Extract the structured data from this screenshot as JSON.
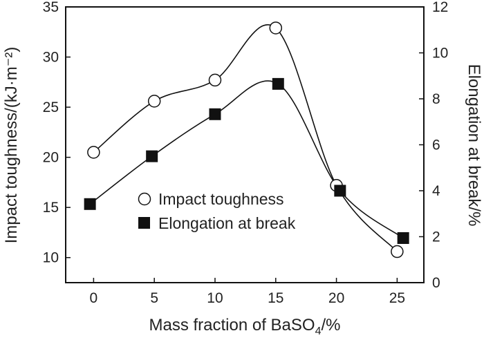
{
  "chart_data": {
    "type": "line",
    "x": [
      0,
      5,
      10,
      15,
      20,
      25
    ],
    "xlabel": {
      "prefix": "Mass fraction of BaSO",
      "sub": "4",
      "suffix": "/%"
    },
    "xlim": [
      -2.3,
      27.2
    ],
    "xticks": [
      0,
      5,
      10,
      15,
      20,
      25
    ],
    "ylabel_left": "Impact toughness/(kJ·m⁻²)",
    "ylim_left": [
      7.5,
      35
    ],
    "yticks_left": [
      10,
      15,
      20,
      25,
      30,
      35
    ],
    "ylabel_right": "Elongation at break/%",
    "ylim_right": [
      0,
      12
    ],
    "yticks_right": [
      0,
      2,
      4,
      6,
      8,
      10,
      12
    ],
    "series": [
      {
        "name": "Impact toughness",
        "axis": "left",
        "marker": "open-circle",
        "x": [
          0,
          5,
          10,
          15,
          20,
          25
        ],
        "values": [
          20.5,
          25.6,
          27.7,
          32.9,
          17.2,
          10.6
        ]
      },
      {
        "name": "Elongation at break",
        "axis": "right",
        "marker": "filled-square",
        "x": [
          -0.3,
          4.8,
          10.0,
          15.2,
          20.3,
          25.5
        ],
        "values": [
          3.42,
          5.5,
          7.33,
          8.65,
          4.0,
          1.94
        ]
      }
    ],
    "legend": {
      "position": "center-left",
      "entries": [
        "Impact toughness",
        "Elongation at break"
      ]
    },
    "grid": false
  }
}
